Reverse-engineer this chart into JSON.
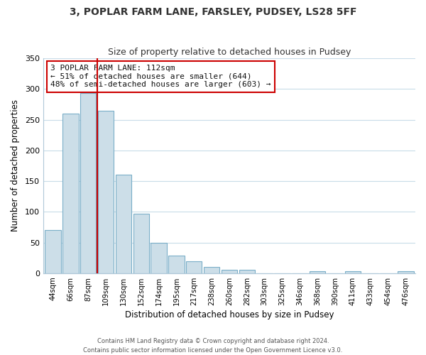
{
  "title": "3, POPLAR FARM LANE, FARSLEY, PUDSEY, LS28 5FF",
  "subtitle": "Size of property relative to detached houses in Pudsey",
  "xlabel": "Distribution of detached houses by size in Pudsey",
  "ylabel": "Number of detached properties",
  "bar_labels": [
    "44sqm",
    "66sqm",
    "87sqm",
    "109sqm",
    "130sqm",
    "152sqm",
    "174sqm",
    "195sqm",
    "217sqm",
    "238sqm",
    "260sqm",
    "282sqm",
    "303sqm",
    "325sqm",
    "346sqm",
    "368sqm",
    "390sqm",
    "411sqm",
    "433sqm",
    "454sqm",
    "476sqm"
  ],
  "bar_values": [
    70,
    260,
    293,
    265,
    160,
    97,
    49,
    29,
    19,
    10,
    6,
    6,
    0,
    0,
    0,
    3,
    0,
    3,
    0,
    0,
    3
  ],
  "bar_color": "#ccdee8",
  "bar_edge_color": "#7aaec8",
  "vline_color": "#cc0000",
  "ylim": [
    0,
    350
  ],
  "yticks": [
    0,
    50,
    100,
    150,
    200,
    250,
    300,
    350
  ],
  "annotation_line1": "3 POPLAR FARM LANE: 112sqm",
  "annotation_line2": "← 51% of detached houses are smaller (644)",
  "annotation_line3": "48% of semi-detached houses are larger (603) →",
  "annotation_box_color": "#ffffff",
  "annotation_box_edge": "#cc0000",
  "footer_line1": "Contains HM Land Registry data © Crown copyright and database right 2024.",
  "footer_line2": "Contains public sector information licensed under the Open Government Licence v3.0.",
  "bg_color": "#ffffff",
  "grid_color": "#c8dce8"
}
